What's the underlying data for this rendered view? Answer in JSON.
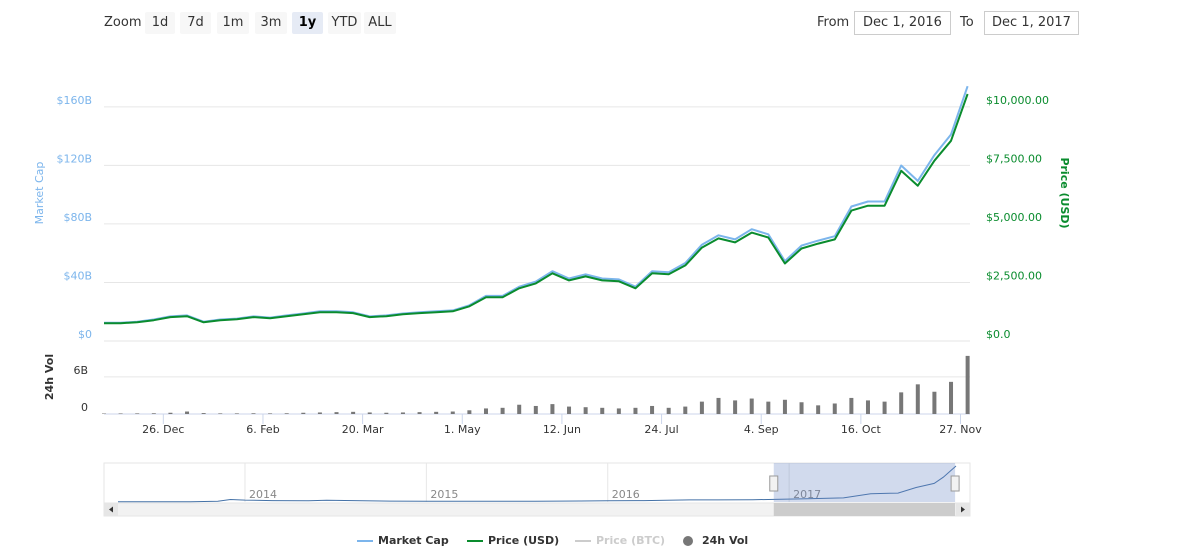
{
  "controls": {
    "zoom_label": "Zoom",
    "zoom_buttons": [
      {
        "label": "1d"
      },
      {
        "label": "7d"
      },
      {
        "label": "1m"
      },
      {
        "label": "3m"
      },
      {
        "label": "1y",
        "active": true
      },
      {
        "label": "YTD"
      },
      {
        "label": "ALL"
      }
    ],
    "from_label": "From",
    "from_value": "Dec 1, 2016",
    "to_label": "To",
    "to_value": "Dec 1, 2017"
  },
  "chart_data": [
    {
      "type": "line",
      "legend": "bottom",
      "grid": true,
      "x": [
        "2016-12-01",
        "2016-12-08",
        "2016-12-15",
        "2016-12-22",
        "2016-12-29",
        "2017-01-05",
        "2017-01-12",
        "2017-01-19",
        "2017-01-26",
        "2017-02-02",
        "2017-02-09",
        "2017-02-16",
        "2017-02-23",
        "2017-03-02",
        "2017-03-09",
        "2017-03-16",
        "2017-03-23",
        "2017-03-30",
        "2017-04-06",
        "2017-04-13",
        "2017-04-20",
        "2017-04-27",
        "2017-05-04",
        "2017-05-11",
        "2017-05-18",
        "2017-05-25",
        "2017-06-01",
        "2017-06-08",
        "2017-06-15",
        "2017-06-22",
        "2017-06-29",
        "2017-07-06",
        "2017-07-13",
        "2017-07-20",
        "2017-07-27",
        "2017-08-03",
        "2017-08-10",
        "2017-08-17",
        "2017-08-24",
        "2017-08-31",
        "2017-09-07",
        "2017-09-14",
        "2017-09-21",
        "2017-09-28",
        "2017-10-05",
        "2017-10-12",
        "2017-10-19",
        "2017-10-26",
        "2017-11-02",
        "2017-11-09",
        "2017-11-16",
        "2017-11-23",
        "2017-11-30"
      ],
      "xlim": [
        "2016-12-01",
        "2017-12-01"
      ],
      "ylabel": "Market Cap",
      "y2label": "Price (USD)",
      "ylim": [
        0,
        192000000000
      ],
      "yticks": [
        {
          "value": 0,
          "label": "$0"
        },
        {
          "value": 40000000000,
          "label": "$40B"
        },
        {
          "value": 80000000000,
          "label": "$80B"
        },
        {
          "value": 120000000000,
          "label": "$120B"
        },
        {
          "value": 160000000000,
          "label": "$160B"
        }
      ],
      "y2lim": [
        0,
        12000
      ],
      "y2ticks": [
        {
          "value": 0,
          "label": "$0.0"
        },
        {
          "value": 2500,
          "label": "$2,500.00"
        },
        {
          "value": 5000,
          "label": "$5,000.00"
        },
        {
          "value": 7500,
          "label": "$7,500.00"
        },
        {
          "value": 10000,
          "label": "$10,000.00"
        }
      ],
      "series": [
        {
          "name": "Market Cap",
          "color": "#7cb5ec",
          "values": [
            12500000000,
            12500000000,
            13200000000,
            14700000000,
            16800000000,
            17500000000,
            13200000000,
            14700000000,
            15300000000,
            16800000000,
            16000000000,
            17500000000,
            18800000000,
            20300000000,
            20300000000,
            19600000000,
            16800000000,
            17500000000,
            18800000000,
            19600000000,
            20300000000,
            20900000000,
            24400000000,
            30800000000,
            30800000000,
            37100000000,
            40600000000,
            47700000000,
            42700000000,
            45500000000,
            42700000000,
            42100000000,
            37100000000,
            47700000000,
            47000000000,
            53300000000,
            65800000000,
            72200000000,
            69400000000,
            76400000000,
            72900000000,
            54600000000,
            65200000000,
            68600000000,
            71600000000,
            91900000000,
            95300000000,
            95300000000,
            119900000000,
            109400000000,
            127000000000,
            141100000000,
            174100000000
          ]
        },
        {
          "name": "Price (USD)",
          "color": "#0a8c2e",
          "axis": "y2",
          "values": [
            760,
            760,
            800,
            890,
            1020,
            1060,
            800,
            890,
            930,
            1020,
            970,
            1060,
            1140,
            1230,
            1230,
            1190,
            1020,
            1060,
            1140,
            1190,
            1230,
            1270,
            1480,
            1870,
            1870,
            2250,
            2460,
            2890,
            2590,
            2760,
            2590,
            2550,
            2250,
            2890,
            2850,
            3230,
            3990,
            4380,
            4210,
            4630,
            4420,
            3310,
            3950,
            4160,
            4340,
            5570,
            5780,
            5780,
            7270,
            6630,
            7700,
            8550,
            10550
          ]
        },
        {
          "name": "Price (BTC)",
          "color": "#cccccc",
          "visible": false
        }
      ]
    },
    {
      "type": "bar",
      "grid": true,
      "x": [
        "2016-12-01",
        "2016-12-08",
        "2016-12-15",
        "2016-12-22",
        "2016-12-29",
        "2017-01-05",
        "2017-01-12",
        "2017-01-19",
        "2017-01-26",
        "2017-02-02",
        "2017-02-09",
        "2017-02-16",
        "2017-02-23",
        "2017-03-02",
        "2017-03-09",
        "2017-03-16",
        "2017-03-23",
        "2017-03-30",
        "2017-04-06",
        "2017-04-13",
        "2017-04-20",
        "2017-04-27",
        "2017-05-04",
        "2017-05-11",
        "2017-05-18",
        "2017-05-25",
        "2017-06-01",
        "2017-06-08",
        "2017-06-15",
        "2017-06-22",
        "2017-06-29",
        "2017-07-06",
        "2017-07-13",
        "2017-07-20",
        "2017-07-27",
        "2017-08-03",
        "2017-08-10",
        "2017-08-17",
        "2017-08-24",
        "2017-08-31",
        "2017-09-07",
        "2017-09-14",
        "2017-09-21",
        "2017-09-28",
        "2017-10-05",
        "2017-10-12",
        "2017-10-19",
        "2017-10-26",
        "2017-11-02",
        "2017-11-09",
        "2017-11-16",
        "2017-11-23",
        "2017-11-30"
      ],
      "xlim": [
        "2016-12-01",
        "2017-12-01"
      ],
      "xticks": [
        {
          "value": "2016-12-26",
          "label": "26. Dec"
        },
        {
          "value": "2017-02-06",
          "label": "6. Feb"
        },
        {
          "value": "2017-03-20",
          "label": "20. Mar"
        },
        {
          "value": "2017-05-01",
          "label": "1. May"
        },
        {
          "value": "2017-06-12",
          "label": "12. Jun"
        },
        {
          "value": "2017-07-24",
          "label": "24. Jul"
        },
        {
          "value": "2017-09-04",
          "label": "4. Sep"
        },
        {
          "value": "2017-10-16",
          "label": "16. Oct"
        },
        {
          "value": "2017-11-27",
          "label": "27. Nov"
        }
      ],
      "ylabel": "24h Vol",
      "ylim": [
        0,
        11000000000
      ],
      "yticks": [
        0,
        {
          "value": 6000000000,
          "label": "6B"
        }
      ],
      "series": [
        {
          "name": "24h Vol",
          "color": "#777777",
          "values": [
            80000000,
            90000000,
            100000000,
            120000000,
            200000000,
            400000000,
            150000000,
            100000000,
            100000000,
            120000000,
            100000000,
            120000000,
            200000000,
            250000000,
            300000000,
            350000000,
            250000000,
            200000000,
            250000000,
            300000000,
            350000000,
            400000000,
            600000000,
            900000000,
            1000000000,
            1500000000,
            1300000000,
            1600000000,
            1200000000,
            1100000000,
            1000000000,
            900000000,
            1000000000,
            1300000000,
            1000000000,
            1200000000,
            2000000000,
            2600000000,
            2200000000,
            2500000000,
            2000000000,
            2300000000,
            1900000000,
            1400000000,
            1700000000,
            2600000000,
            2200000000,
            2000000000,
            3500000000,
            4800000000,
            3600000000,
            5200000000,
            9400000000
          ]
        }
      ]
    },
    {
      "type": "navigator",
      "color": "#4572a7",
      "x": [
        2013.3,
        2013.5,
        2013.7,
        2013.85,
        2013.92,
        2014,
        2014.15,
        2014.35,
        2014.45,
        2014.6,
        2014.8,
        2015,
        2015.2,
        2015.4,
        2015.6,
        2015.85,
        2016,
        2016.2,
        2016.45,
        2016.6,
        2016.8,
        2016.92,
        2017.1,
        2017.3,
        2017.45,
        2017.6,
        2017.7,
        2017.8,
        2017.85,
        2017.92
      ],
      "xlim": [
        2013.3,
        2017.92
      ],
      "xticks": [
        2014,
        2015,
        2016,
        2017
      ],
      "values": [
        1300000000,
        1200000000,
        1500000000,
        4000000000,
        12000000000,
        9000000000,
        7000000000,
        6000000000,
        8000000000,
        7000000000,
        4500000000,
        3500000000,
        3300000000,
        3200000000,
        3900000000,
        5000000000,
        6500000000,
        6600000000,
        10000000000,
        10000000000,
        11000000000,
        12500000000,
        16000000000,
        20000000000,
        40000000000,
        43000000000,
        70000000000,
        90000000000,
        120000000000,
        174000000000
      ]
    }
  ]
}
